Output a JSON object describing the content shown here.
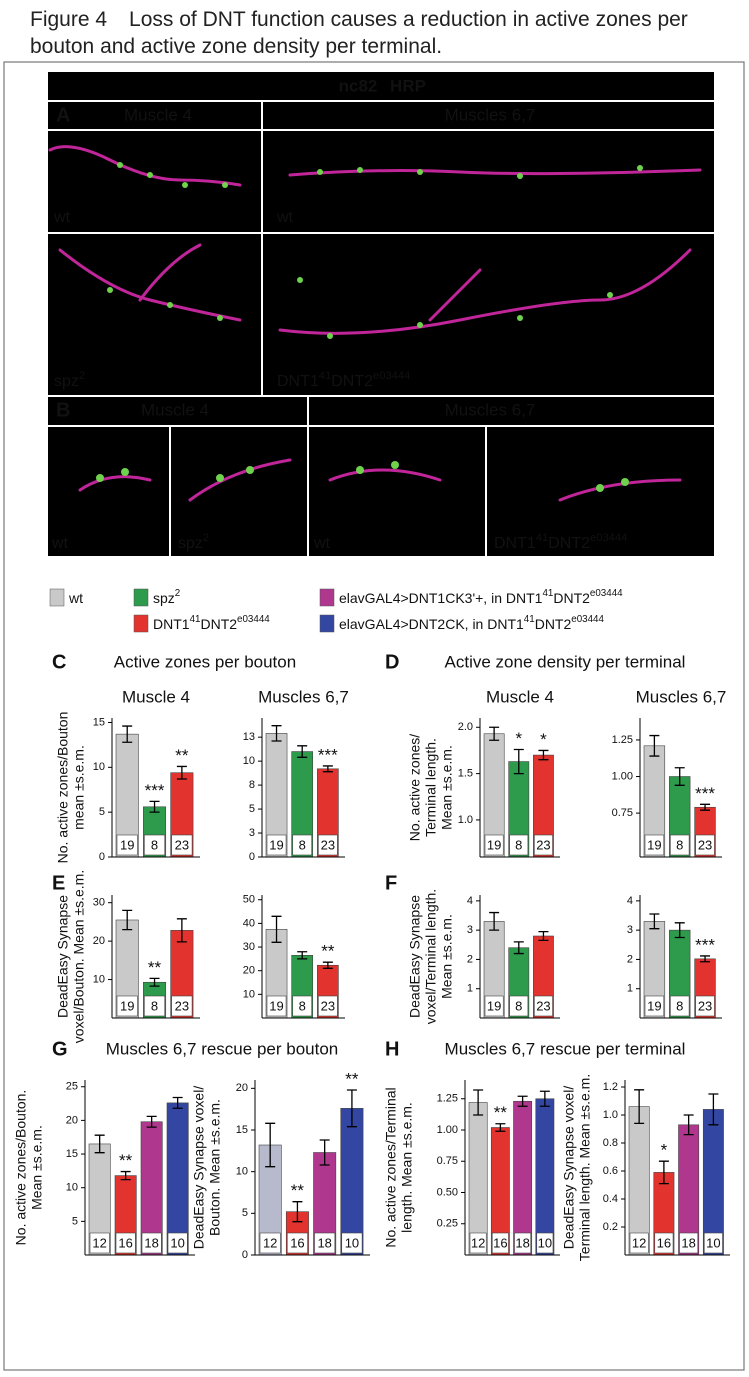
{
  "caption": {
    "label": "Figure 4",
    "text": "Loss of DNT function causes a reduction in active zones per bouton and active zone density per terminal."
  },
  "micrographs": {
    "stain": [
      {
        "text": "nc82",
        "color": "#86d94e"
      },
      {
        "text": "HRP",
        "color": "#d5329c"
      }
    ],
    "A": {
      "letter": "A",
      "columns": [
        "Muscle 4",
        "Muscles 6,7"
      ],
      "genotypes": [
        [
          "wt"
        ],
        [
          "wt"
        ],
        [
          "spz",
          "2"
        ],
        [
          "DNT1",
          "41",
          "DNT2",
          "e03444"
        ]
      ]
    },
    "B": {
      "letter": "B",
      "columns": [
        "Muscle 4",
        "Muscles 6,7"
      ],
      "genotypes": [
        [
          "wt"
        ],
        [
          "spz",
          "2"
        ],
        [
          "wt"
        ],
        [
          "DNT1",
          "41",
          "DNT2",
          "e03444"
        ]
      ]
    }
  },
  "legend": [
    {
      "label": [
        "wt"
      ],
      "color": "#c9c9c9"
    },
    {
      "label": [
        "spz",
        "2"
      ],
      "color": "#2d9a4c"
    },
    {
      "label": [
        "elavGAL4>DNT1CK3'+, in DNT1",
        "41",
        "DNT2",
        "e03444"
      ],
      "color": "#b0378e"
    },
    {
      "label": [
        "DNT1",
        "41",
        "DNT2",
        "e03444"
      ],
      "color": "#e2332f"
    },
    {
      "label": [
        "elavGAL4>DNT2CK, in DNT1",
        "41",
        "DNT2",
        "e03444"
      ],
      "color": "#3346a2"
    }
  ],
  "panels": [
    {
      "letter": "C",
      "title": "Active zones per bouton"
    },
    {
      "letter": "D",
      "title": "Active zone density per terminal"
    },
    {
      "letter": "E"
    },
    {
      "letter": "F"
    },
    {
      "letter": "G",
      "title": "Muscles 6,7 rescue per bouton"
    },
    {
      "letter": "H",
      "title": "Muscles 6,7 rescue per terminal"
    }
  ],
  "chart_data": [
    {
      "type": "bar",
      "title": "Muscle 4",
      "ylabel": [
        "No. active zones/Bouton",
        "mean ±s.e.m."
      ],
      "values": [
        13.7,
        5.6,
        9.4
      ],
      "errors": [
        0.9,
        0.6,
        0.7
      ],
      "n": [
        19,
        8,
        23
      ],
      "significance": [
        null,
        "***",
        "**"
      ],
      "colors": [
        "#c9c9c9",
        "#2d9a4c",
        "#e2332f"
      ],
      "ylim": [
        0,
        15.5
      ],
      "yticks": [
        0,
        5,
        10,
        15
      ]
    },
    {
      "type": "bar",
      "title": "Muscles 6,7",
      "values": [
        12.9,
        11.0,
        9.2
      ],
      "errors": [
        0.8,
        0.6,
        0.3
      ],
      "n": [
        19,
        8,
        23
      ],
      "significance": [
        null,
        null,
        "***"
      ],
      "colors": [
        "#c9c9c9",
        "#2d9a4c",
        "#e2332f"
      ],
      "ylim": [
        0,
        14.5
      ],
      "yticks": [
        0,
        {
          "value": 2.5,
          "label": "3"
        },
        5,
        {
          "value": 7.5,
          "label": "8"
        },
        10,
        {
          "value": 12.5,
          "label": "13"
        }
      ]
    },
    {
      "type": "bar",
      "title": "Muscle 4",
      "ylabel": [
        "No. active zones/",
        "Terminal length.",
        "Mean ±s.e.m."
      ],
      "values": [
        1.93,
        1.63,
        1.7
      ],
      "errors": [
        0.07,
        0.13,
        0.05
      ],
      "n": [
        19,
        8,
        23
      ],
      "significance": [
        null,
        "*",
        "*"
      ],
      "colors": [
        "#c9c9c9",
        "#2d9a4c",
        "#e2332f"
      ],
      "ylim": [
        0.6,
        2.1
      ],
      "yticks": [
        {
          "value": 1,
          "label": "1.0"
        },
        1.5,
        {
          "value": 2,
          "label": "2.0"
        }
      ]
    },
    {
      "type": "bar",
      "title": "Muscles 6,7",
      "values": [
        1.21,
        1.0,
        0.79
      ],
      "errors": [
        0.07,
        0.06,
        0.02
      ],
      "n": [
        19,
        8,
        23
      ],
      "significance": [
        null,
        null,
        "***"
      ],
      "colors": [
        "#c9c9c9",
        "#2d9a4c",
        "#e2332f"
      ],
      "ylim": [
        0.45,
        1.4
      ],
      "yticks": [
        0.75,
        {
          "value": 1,
          "label": "1.00"
        },
        1.25
      ]
    },
    {
      "type": "bar",
      "ylabel": [
        "DeadEasy Synapse",
        "voxel/Bouton. Mean ±s.e.m."
      ],
      "values": [
        25.5,
        9.3,
        22.8
      ],
      "errors": [
        2.5,
        1.0,
        3.0
      ],
      "n": [
        19,
        8,
        23
      ],
      "significance": [
        null,
        "**",
        null
      ],
      "colors": [
        "#c9c9c9",
        "#2d9a4c",
        "#e2332f"
      ],
      "ylim": [
        0,
        32
      ],
      "yticks": [
        10,
        20,
        30
      ]
    },
    {
      "type": "bar",
      "values": [
        37.5,
        26.5,
        22.3
      ],
      "errors": [
        5.5,
        1.5,
        1.3
      ],
      "n": [
        19,
        8,
        23
      ],
      "significance": [
        null,
        null,
        "**"
      ],
      "colors": [
        "#c9c9c9",
        "#2d9a4c",
        "#e2332f"
      ],
      "ylim": [
        0,
        52
      ],
      "yticks": [
        10,
        20,
        30,
        40,
        50
      ]
    },
    {
      "type": "bar",
      "ylabel": [
        "DeadEasy Synapse",
        "voxel/Terminal length.",
        "Mean ±s.e.m."
      ],
      "values": [
        3.3,
        2.4,
        2.8
      ],
      "errors": [
        0.3,
        0.2,
        0.15
      ],
      "n": [
        19,
        8,
        23
      ],
      "significance": [
        null,
        null,
        null
      ],
      "colors": [
        "#c9c9c9",
        "#2d9a4c",
        "#e2332f"
      ],
      "ylim": [
        0,
        4.2
      ],
      "yticks": [
        1,
        2,
        3,
        4
      ]
    },
    {
      "type": "bar",
      "values": [
        3.3,
        3.0,
        2.02
      ],
      "errors": [
        0.25,
        0.25,
        0.1
      ],
      "n": [
        19,
        8,
        23
      ],
      "significance": [
        null,
        null,
        "***"
      ],
      "colors": [
        "#c9c9c9",
        "#2d9a4c",
        "#e2332f"
      ],
      "ylim": [
        0,
        4.2
      ],
      "yticks": [
        1,
        2,
        3,
        4
      ]
    },
    {
      "type": "bar",
      "ylabel": [
        "No. active zones/Bouton.",
        "Mean ±s.e.m."
      ],
      "values": [
        16.5,
        11.8,
        19.8,
        22.6
      ],
      "errors": [
        1.3,
        0.6,
        0.8,
        0.8
      ],
      "n": [
        12,
        16,
        18,
        10
      ],
      "significance": [
        null,
        "**",
        null,
        null
      ],
      "colors": [
        "#c9c9c9",
        "#e2332f",
        "#b0378e",
        "#3346a2"
      ],
      "ylim": [
        0,
        26
      ],
      "yticks": [
        5,
        10,
        15,
        20,
        25
      ]
    },
    {
      "type": "bar",
      "ylabel": [
        "DeadEasy Synapse  voxel/",
        "Bouton. Mean ±s.e.m."
      ],
      "values": [
        13.2,
        5.2,
        12.3,
        17.6
      ],
      "errors": [
        2.6,
        1.2,
        1.5,
        2.2
      ],
      "n": [
        12,
        16,
        18,
        10
      ],
      "significance": [
        null,
        "**",
        null,
        "**"
      ],
      "colors": [
        "#b7b9cc",
        "#e2332f",
        "#b0378e",
        "#3346a2"
      ],
      "ylim": [
        0,
        21
      ],
      "yticks": [
        0,
        5,
        10,
        15,
        20
      ]
    },
    {
      "type": "bar",
      "ylabel": [
        "No. active zones/Terminal",
        "length. Mean ±s.e.m."
      ],
      "values": [
        1.22,
        1.02,
        1.23,
        1.25
      ],
      "errors": [
        0.1,
        0.03,
        0.04,
        0.06
      ],
      "n": [
        12,
        16,
        18,
        10
      ],
      "significance": [
        null,
        "**",
        null,
        null
      ],
      "colors": [
        "#c9c9c9",
        "#e2332f",
        "#b0378e",
        "#3346a2"
      ],
      "ylim": [
        0,
        1.4
      ],
      "yticks": [
        0.25,
        {
          "value": 0.5,
          "label": "0.50"
        },
        0.75,
        {
          "value": 1,
          "label": "1.00"
        },
        1.25
      ]
    },
    {
      "type": "bar",
      "ylabel": [
        "DeadEasy Synapse voxel/",
        "Terminal length. Mean ±s.e.m."
      ],
      "values": [
        1.06,
        0.59,
        0.93,
        1.04
      ],
      "errors": [
        0.12,
        0.08,
        0.07,
        0.11
      ],
      "n": [
        12,
        16,
        18,
        10
      ],
      "significance": [
        null,
        "*",
        null,
        null
      ],
      "colors": [
        "#c9c9c9",
        "#e2332f",
        "#b0378e",
        "#3346a2"
      ],
      "ylim": [
        0,
        1.25
      ],
      "yticks": [
        0.2,
        0.4,
        0.6,
        0.8,
        {
          "value": 1,
          "label": "1.0"
        },
        1.2
      ]
    }
  ]
}
